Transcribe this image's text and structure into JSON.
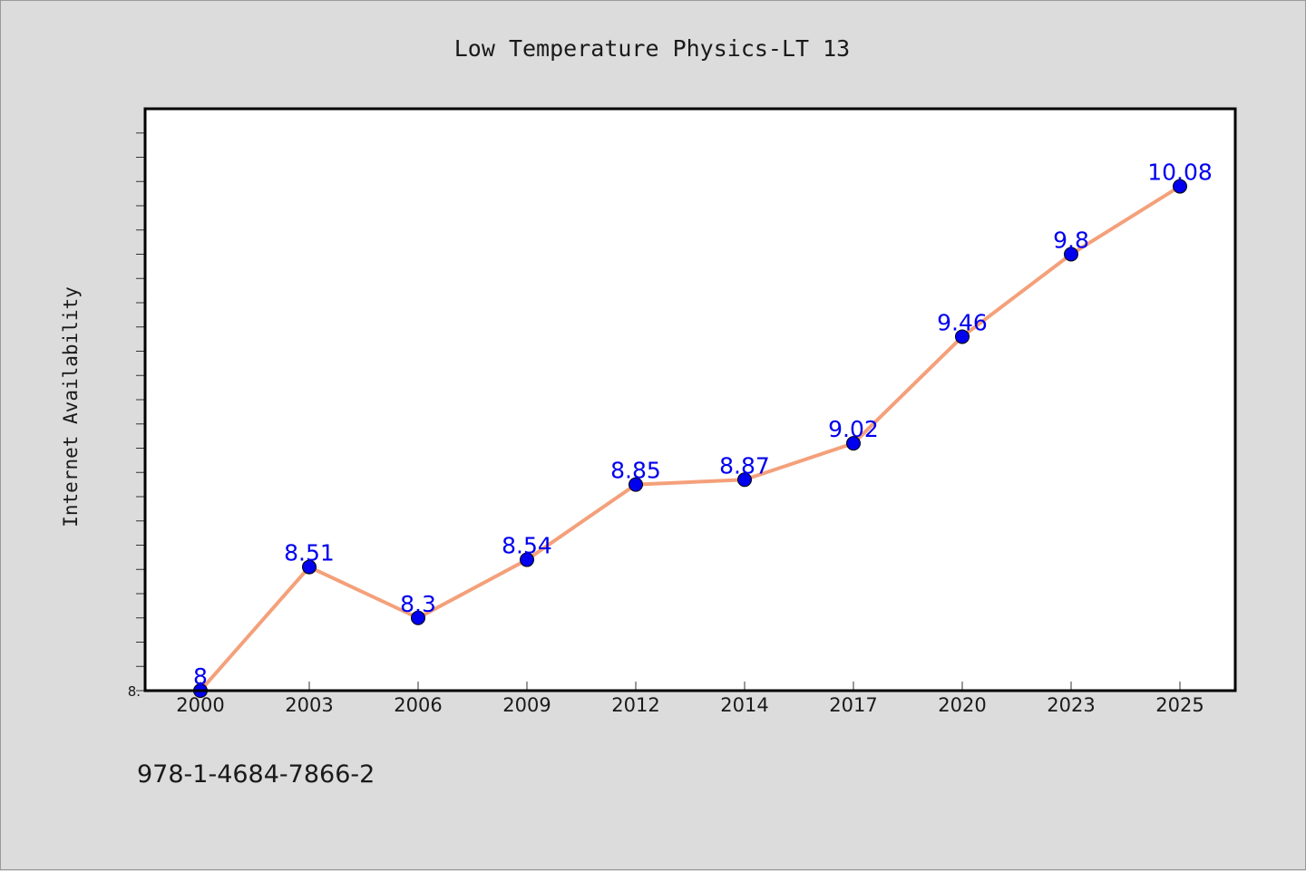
{
  "chart_data": {
    "type": "line",
    "title": "Low Temperature Physics-LT 13",
    "xlabel": "",
    "ylabel": "Internet Availability",
    "categories": [
      "2000",
      "2003",
      "2006",
      "2009",
      "2012",
      "2014",
      "2017",
      "2020",
      "2023",
      "2025"
    ],
    "series": [
      {
        "values": [
          8,
          8.51,
          8.3,
          8.54,
          8.85,
          8.87,
          9.02,
          9.46,
          9.8,
          10.08
        ]
      }
    ],
    "data_labels": [
      "8",
      "8.51",
      "8.3",
      "8.54",
      "8.85",
      "8.87",
      "9.02",
      "9.46",
      "9.8",
      "10.08"
    ],
    "ylim": [
      8,
      10.4
    ],
    "y_tick_labels": [
      "8."
    ],
    "grid": false,
    "colors": {
      "line": "#f4a07a",
      "marker": "#0000ee",
      "label": "#0000ee",
      "background": "#dcdcdc",
      "plot_background": "#ffffff"
    }
  },
  "footer_text": "978-1-4684-7866-2"
}
